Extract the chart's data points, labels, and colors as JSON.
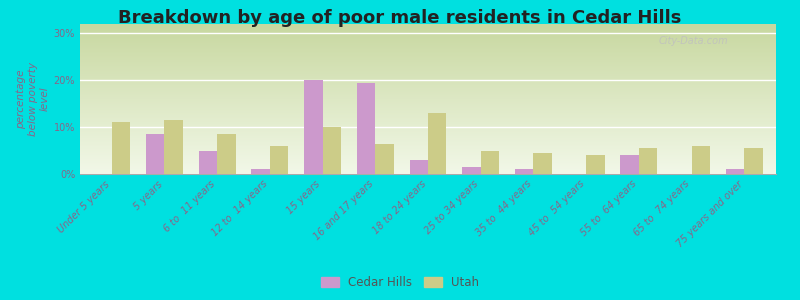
{
  "title": "Breakdown by age of poor male residents in Cedar Hills",
  "ylabel": "percentage\nbelow poverty\nlevel",
  "categories": [
    "Under 5 years",
    "5 years",
    "6 to  11 years",
    "12 to  14 years",
    "15 years",
    "16 and 17 years",
    "18 to 24 years",
    "25 to 34 years",
    "35 to  44 years",
    "45 to  54 years",
    "55 to  64 years",
    "65 to  74 years",
    "75 years and over"
  ],
  "cedar_hills": [
    0.0,
    8.5,
    5.0,
    1.0,
    20.0,
    19.5,
    3.0,
    1.5,
    1.0,
    0.0,
    4.0,
    0.0,
    1.0
  ],
  "utah": [
    11.0,
    11.5,
    8.5,
    6.0,
    10.0,
    6.5,
    13.0,
    5.0,
    4.5,
    4.0,
    5.5,
    6.0,
    5.5
  ],
  "cedar_hills_color": "#cc99cc",
  "utah_color": "#cccc88",
  "outer_bg": "#00e0e0",
  "plot_bg_top": "#c8d8a0",
  "plot_bg_bottom": "#f2f8e8",
  "ylim": [
    0,
    32
  ],
  "yticks": [
    0,
    10,
    20,
    30
  ],
  "ytick_labels": [
    "0%",
    "10%",
    "20%",
    "30%"
  ],
  "bar_width": 0.35,
  "title_fontsize": 13,
  "tick_fontsize": 7,
  "ylabel_fontsize": 7.5,
  "legend_labels": [
    "Cedar Hills",
    "Utah"
  ],
  "watermark": "City-Data.com"
}
